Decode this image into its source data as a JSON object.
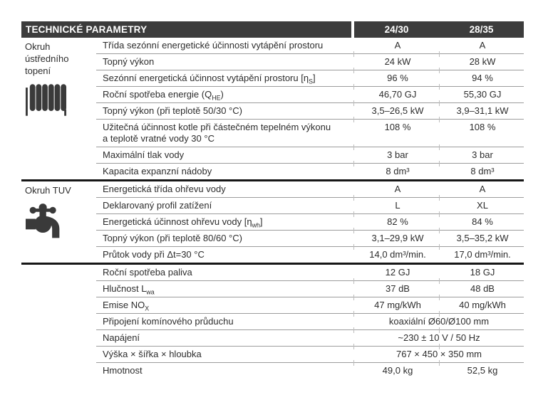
{
  "table": {
    "title": "TECHNICKÉ PARAMETRY",
    "columns": [
      "24/30",
      "28/35"
    ],
    "colors": {
      "header_bg": "#3c3c3c",
      "header_text": "#ffffff",
      "body_text": "#2d2d2d",
      "row_separator": "#9c9c9c",
      "section_separator": "#161616",
      "icon": "#3a3a3a"
    },
    "sections": [
      {
        "label": "Okruh ústředního topení",
        "icon": "radiator-icon",
        "rows": [
          {
            "param": "Třída sezónní energetické účinnosti vytápění prostoru",
            "values": [
              "A",
              "A"
            ]
          },
          {
            "param": "Topný výkon",
            "values": [
              "24 kW",
              "28 kW"
            ]
          },
          {
            "param": "Sezónní energetická účinnost vytápění prostoru [η<sub>S</sub>]",
            "values": [
              "96 %",
              "94 %"
            ]
          },
          {
            "param": "Roční spotřeba energie (Q<sub>HE</sub>)",
            "values": [
              "46,70 GJ",
              "55,30 GJ"
            ]
          },
          {
            "param": "Topný výkon (při teplotě 50/30 °C)",
            "values": [
              "3,5–26,5 kW",
              "3,9–31,1 kW"
            ]
          },
          {
            "param": "Užitečná účinnost kotle při částečném tepelném výkonu<br>a teplotě vratné vody 30 °C",
            "values": [
              "108 %",
              "108 %"
            ]
          },
          {
            "param": "Maximální tlak vody",
            "values": [
              "3 bar",
              "3 bar"
            ]
          },
          {
            "param": "Kapacita expanzní nádoby",
            "values": [
              "8 dm³",
              "8 dm³"
            ]
          }
        ]
      },
      {
        "label": "Okruh TUV",
        "icon": "faucet-icon",
        "rows": [
          {
            "param": "Energetická třída ohřevu vody",
            "values": [
              "A",
              "A"
            ]
          },
          {
            "param": "Deklarovaný profil zatížení",
            "values": [
              "L",
              "XL"
            ]
          },
          {
            "param": "Energetická účinnost ohřevu vody [η<sub>wh</sub>]",
            "values": [
              "82 %",
              "84 %"
            ]
          },
          {
            "param": "Topný výkon (při teplotě 80/60 °C)",
            "values": [
              "3,1–29,9 kW",
              "3,5–35,2 kW"
            ]
          },
          {
            "param": "Průtok vody při Δt=30 °C",
            "values": [
              "14,0 dm³/min.",
              "17,0 dm³/min."
            ]
          }
        ]
      },
      {
        "label": "",
        "icon": null,
        "rows": [
          {
            "param": "Roční spotřeba paliva",
            "values": [
              "12 GJ",
              "18 GJ"
            ]
          },
          {
            "param": "Hlučnost L<sub>wa</sub>",
            "values": [
              "37 dB",
              "48 dB"
            ]
          },
          {
            "param": "Emise NO<sub>X</sub>",
            "values": [
              "47 mg/kWh",
              "40 mg/kWh"
            ]
          },
          {
            "param": "Připojení komínového průduchu",
            "span_value": "koaxiální Ø60/Ø100 mm"
          },
          {
            "param": "Napájení",
            "span_value": "~230 ± 10 V / 50 Hz"
          },
          {
            "param": "Výška × šířka × hloubka",
            "span_value": "767 × 450 × 350 mm"
          },
          {
            "param": "Hmotnost",
            "values": [
              "49,0 kg",
              "52,5 kg"
            ]
          }
        ]
      }
    ]
  }
}
